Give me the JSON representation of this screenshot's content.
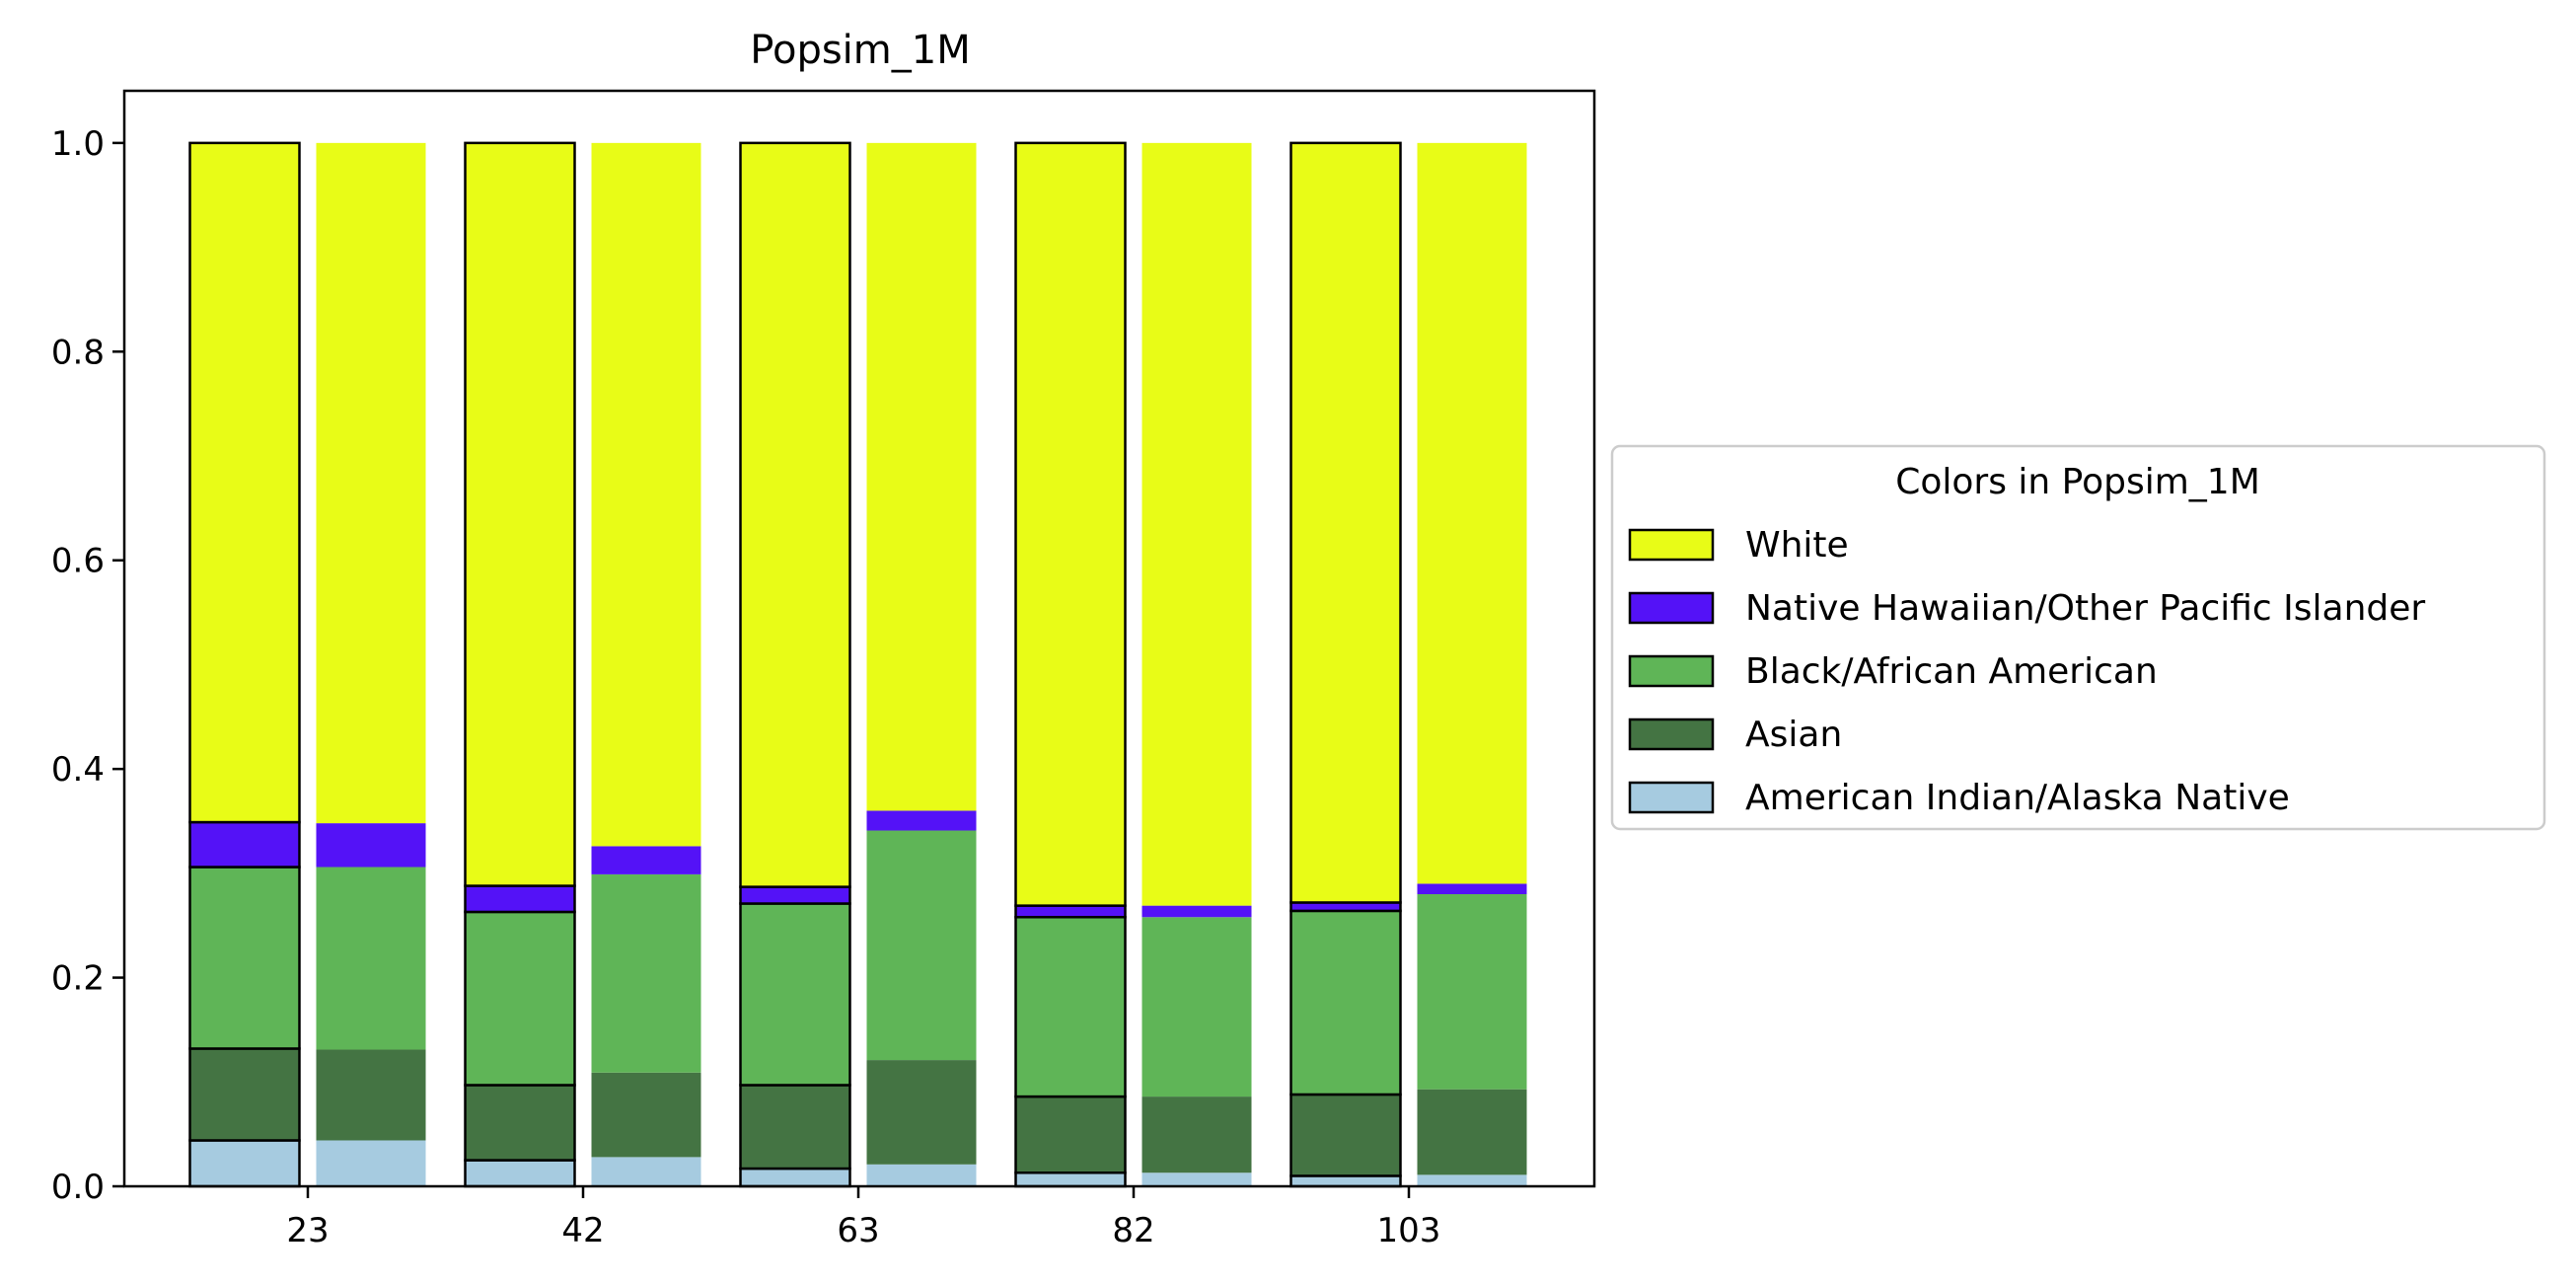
{
  "chart_data": {
    "type": "bar",
    "subtype": "stacked-grouped",
    "title": "Popsim_1M",
    "xlabel": "",
    "ylabel": "",
    "categories": [
      "23",
      "42",
      "63",
      "82",
      "103"
    ],
    "ylim": [
      0,
      1.05
    ],
    "yticks": [
      "0.0",
      "0.2",
      "0.4",
      "0.6",
      "0.8",
      "1.0"
    ],
    "grid": false,
    "legend": {
      "title": "Colors in Popsim_1M",
      "placement": "right"
    },
    "bars_per_category": [
      {
        "outlined": true
      },
      {
        "outlined": false
      }
    ],
    "series": [
      {
        "name": "American Indian/Alaska Native",
        "color": "#a6cbe0",
        "values": [
          [
            0.044,
            0.044
          ],
          [
            0.025,
            0.028
          ],
          [
            0.017,
            0.021
          ],
          [
            0.013,
            0.013
          ],
          [
            0.01,
            0.011
          ]
        ]
      },
      {
        "name": "Asian",
        "color": "#447443",
        "values": [
          [
            0.088,
            0.087
          ],
          [
            0.072,
            0.081
          ],
          [
            0.08,
            0.1
          ],
          [
            0.073,
            0.073
          ],
          [
            0.078,
            0.082
          ]
        ]
      },
      {
        "name": "Black/African American",
        "color": "#5fb557",
        "values": [
          [
            0.174,
            0.175
          ],
          [
            0.166,
            0.19
          ],
          [
            0.174,
            0.22
          ],
          [
            0.172,
            0.172
          ],
          [
            0.176,
            0.187
          ]
        ]
      },
      {
        "name": "Native Hawaiian/Other Pacific Islander",
        "color": "#5412f7",
        "values": [
          [
            0.043,
            0.042
          ],
          [
            0.025,
            0.027
          ],
          [
            0.016,
            0.019
          ],
          [
            0.011,
            0.011
          ],
          [
            0.008,
            0.01
          ]
        ]
      },
      {
        "name": "White",
        "color": "#e8fc17",
        "values": [
          [
            0.651,
            0.652
          ],
          [
            0.712,
            0.674
          ],
          [
            0.713,
            0.64
          ],
          [
            0.731,
            0.731
          ],
          [
            0.728,
            0.71
          ]
        ]
      }
    ],
    "legend_order": [
      "White",
      "Native Hawaiian/Other Pacific Islander",
      "Black/African American",
      "Asian",
      "American Indian/Alaska Native"
    ]
  }
}
